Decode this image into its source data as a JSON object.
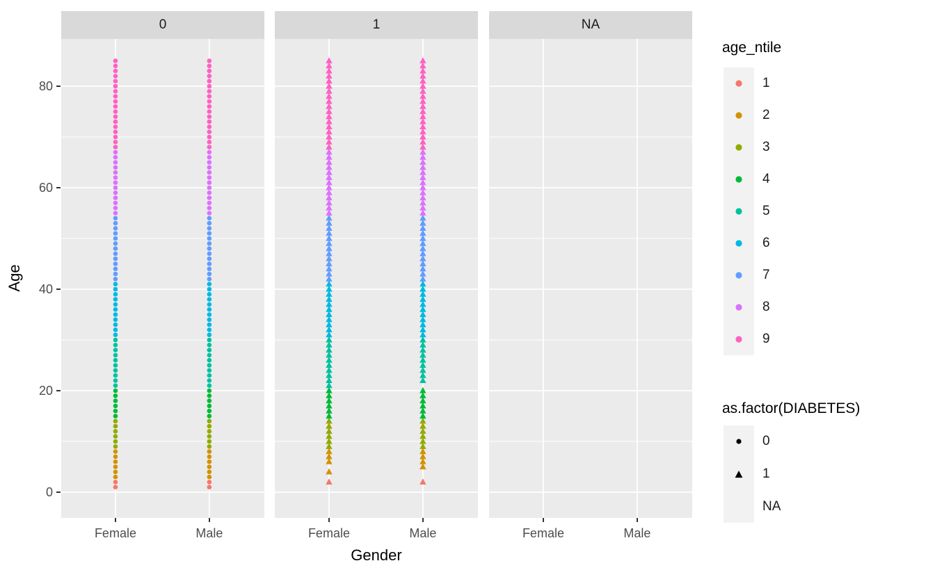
{
  "chart_data": {
    "type": "scatter",
    "title": "",
    "xlabel": "Gender",
    "ylabel": "Age",
    "x_categories": [
      "Female",
      "Male"
    ],
    "y_ticks": [
      0,
      20,
      40,
      60,
      80
    ],
    "y_minor_ticks": [
      10,
      30,
      50,
      70
    ],
    "ylim": [
      -5,
      89
    ],
    "facet_labels": [
      "0",
      "1",
      "NA"
    ],
    "facets": [
      {
        "label": "0",
        "shape": "circle",
        "points": {
          "Female": [
            [
              1,
              85
            ]
          ],
          "Male": [
            [
              1,
              85
            ]
          ]
        }
      },
      {
        "label": "1",
        "shape": "triangle",
        "points": {
          "Female": [
            [
              2,
              2
            ],
            [
              4,
              4
            ],
            [
              6,
              85
            ]
          ],
          "Male": [
            [
              2,
              2
            ],
            [
              5,
              20
            ],
            [
              22,
              85
            ]
          ]
        }
      },
      {
        "label": "NA",
        "shape": "none",
        "points": {
          "Female": [],
          "Male": []
        }
      }
    ],
    "color_legend": {
      "title": "age_ntile",
      "entries": [
        {
          "label": "1",
          "color": "#F8766D",
          "age_range": [
            1,
            2
          ]
        },
        {
          "label": "2",
          "color": "#D39200",
          "age_range": [
            3,
            8
          ]
        },
        {
          "label": "3",
          "color": "#93AA00",
          "age_range": [
            9,
            14
          ]
        },
        {
          "label": "4",
          "color": "#00BA38",
          "age_range": [
            15,
            20
          ]
        },
        {
          "label": "5",
          "color": "#00C19F",
          "age_range": [
            21,
            30
          ]
        },
        {
          "label": "6",
          "color": "#00B9E3",
          "age_range": [
            31,
            41
          ]
        },
        {
          "label": "7",
          "color": "#619CFF",
          "age_range": [
            42,
            54
          ]
        },
        {
          "label": "8",
          "color": "#DB72FB",
          "age_range": [
            55,
            67
          ]
        },
        {
          "label": "9",
          "color": "#FF61C3",
          "age_range": [
            68,
            85
          ]
        }
      ]
    },
    "shape_legend": {
      "title": "as.factor(DIABETES)",
      "entries": [
        {
          "label": "0",
          "shape": "circle"
        },
        {
          "label": "1",
          "shape": "triangle"
        },
        {
          "label": "NA",
          "shape": "none"
        }
      ]
    },
    "colors": {
      "panel_bg": "#EBEBEB",
      "strip_bg": "#D9D9D9",
      "grid": "#FFFFFF",
      "tick": "#333333",
      "tick_label": "#4D4D4D",
      "text": "#000000",
      "legend_key_bg": "#F2F2F2",
      "legend_symbol": "#000000"
    }
  }
}
